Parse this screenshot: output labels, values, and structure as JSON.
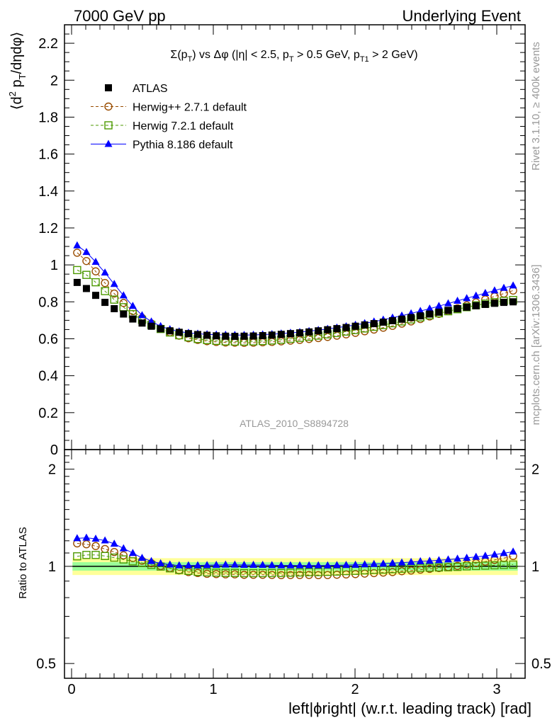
{
  "header": {
    "left": "7000 GeV pp",
    "right": "Underlying Event"
  },
  "side": {
    "rivet": "Rivet 3.1.10, ≥ 400k events",
    "mcplots": "mcplots.cern.ch [arXiv:1306.3436]"
  },
  "colors": {
    "atlas": "#000000",
    "herwigpp": "#994c00",
    "herwig7": "#4c9900",
    "pythia": "#0000ff",
    "band_inner": "#99ff99",
    "band_outer": "#ffff99",
    "watermark": "#999999"
  },
  "chart_data": {
    "type": "scatter",
    "title": "Σ(pT) vs Δφ (|η| < 2.5, pT > 0.5 GeV, pT1 > 2 GeV)",
    "title_parts": {
      "sigma": "Σ(p",
      "t1": "T",
      "mid": ") vs Δφ (|η| < 2.5, p",
      "t2": "T",
      "mid2": " > 0.5 GeV, p",
      "t3": "T1",
      "end": " > 2 GeV)"
    },
    "ylabel_main": "⟨d² pT/dηdφ⟩",
    "ylabel_parts": {
      "a": "⟨d",
      "sup": "2",
      "b": " p",
      "sub": "T",
      "c": "/dηdφ⟩"
    },
    "ylabel_ratio": "Ratio to ATLAS",
    "xlabel": "left|ϕright| (w.r.t. leading track) [rad]",
    "watermark": "ATLAS_2010_S8894728",
    "xlim": [
      -0.05,
      3.2
    ],
    "ylim_main": [
      0,
      2.3
    ],
    "ylim_ratio": [
      0.45,
      2.3
    ],
    "x_ticks": [
      "0",
      "1",
      "2",
      "3"
    ],
    "y_ticks_main": [
      "0",
      "0.2",
      "0.4",
      "0.6",
      "0.8",
      "1",
      "1.2",
      "1.4",
      "1.6",
      "1.8",
      "2",
      "2.2"
    ],
    "y_ticks_ratio": [
      "0.5",
      "1",
      "2"
    ],
    "band_inner": [
      0.97,
      1.03
    ],
    "band_outer": [
      0.94,
      1.06
    ],
    "x": [
      0.0393,
      0.1047,
      0.1702,
      0.2356,
      0.3011,
      0.3665,
      0.432,
      0.4974,
      0.5629,
      0.6283,
      0.6938,
      0.7592,
      0.8247,
      0.8901,
      0.9556,
      1.021,
      1.0865,
      1.1519,
      1.2174,
      1.2828,
      1.3483,
      1.4137,
      1.4792,
      1.5446,
      1.6101,
      1.6755,
      1.741,
      1.8064,
      1.8719,
      1.9373,
      2.0028,
      2.0682,
      2.1337,
      2.1991,
      2.2646,
      2.33,
      2.3955,
      2.4609,
      2.5264,
      2.5918,
      2.6573,
      2.7227,
      2.7882,
      2.8536,
      2.9191,
      2.9845,
      3.05,
      3.1154
    ],
    "series": [
      {
        "name": "ATLAS",
        "key": "atlas",
        "marker": "square-filled",
        "values": [
          0.905,
          0.872,
          0.835,
          0.797,
          0.763,
          0.734,
          0.707,
          0.685,
          0.668,
          0.654,
          0.643,
          0.635,
          0.628,
          0.623,
          0.619,
          0.616,
          0.614,
          0.613,
          0.614,
          0.615,
          0.617,
          0.62,
          0.624,
          0.628,
          0.632,
          0.637,
          0.643,
          0.649,
          0.655,
          0.661,
          0.668,
          0.675,
          0.682,
          0.69,
          0.698,
          0.706,
          0.715,
          0.724,
          0.734,
          0.744,
          0.754,
          0.763,
          0.771,
          0.779,
          0.786,
          0.792,
          0.797,
          0.8
        ]
      },
      {
        "name": "Herwig++ 2.7.1 default",
        "key": "herwigpp",
        "marker": "circle-open",
        "values": [
          1.066,
          1.021,
          0.965,
          0.902,
          0.845,
          0.794,
          0.75,
          0.713,
          0.683,
          0.656,
          0.635,
          0.617,
          0.603,
          0.594,
          0.587,
          0.583,
          0.58,
          0.579,
          0.578,
          0.579,
          0.581,
          0.583,
          0.586,
          0.59,
          0.594,
          0.599,
          0.604,
          0.61,
          0.617,
          0.624,
          0.632,
          0.641,
          0.65,
          0.66,
          0.67,
          0.682,
          0.694,
          0.707,
          0.721,
          0.735,
          0.75,
          0.765,
          0.781,
          0.797,
          0.813,
          0.829,
          0.845,
          0.861
        ]
      },
      {
        "name": "Herwig 7.2.1 default",
        "key": "herwig7",
        "marker": "square-open",
        "values": [
          0.972,
          0.946,
          0.906,
          0.858,
          0.812,
          0.771,
          0.733,
          0.702,
          0.675,
          0.653,
          0.634,
          0.619,
          0.608,
          0.599,
          0.593,
          0.589,
          0.586,
          0.585,
          0.585,
          0.586,
          0.588,
          0.591,
          0.595,
          0.6,
          0.605,
          0.611,
          0.617,
          0.624,
          0.631,
          0.639,
          0.647,
          0.656,
          0.665,
          0.674,
          0.684,
          0.694,
          0.705,
          0.716,
          0.727,
          0.738,
          0.749,
          0.76,
          0.771,
          0.781,
          0.79,
          0.798,
          0.805,
          0.81
        ]
      },
      {
        "name": "Pythia 8.186 default",
        "key": "pythia",
        "marker": "triangle-filled",
        "values": [
          1.105,
          1.069,
          1.016,
          0.958,
          0.896,
          0.834,
          0.777,
          0.727,
          0.693,
          0.668,
          0.651,
          0.639,
          0.632,
          0.627,
          0.624,
          0.622,
          0.621,
          0.62,
          0.62,
          0.621,
          0.623,
          0.625,
          0.628,
          0.632,
          0.636,
          0.641,
          0.647,
          0.653,
          0.66,
          0.667,
          0.675,
          0.684,
          0.693,
          0.703,
          0.714,
          0.725,
          0.737,
          0.75,
          0.763,
          0.777,
          0.791,
          0.805,
          0.819,
          0.833,
          0.847,
          0.861,
          0.875,
          0.888
        ]
      }
    ]
  }
}
